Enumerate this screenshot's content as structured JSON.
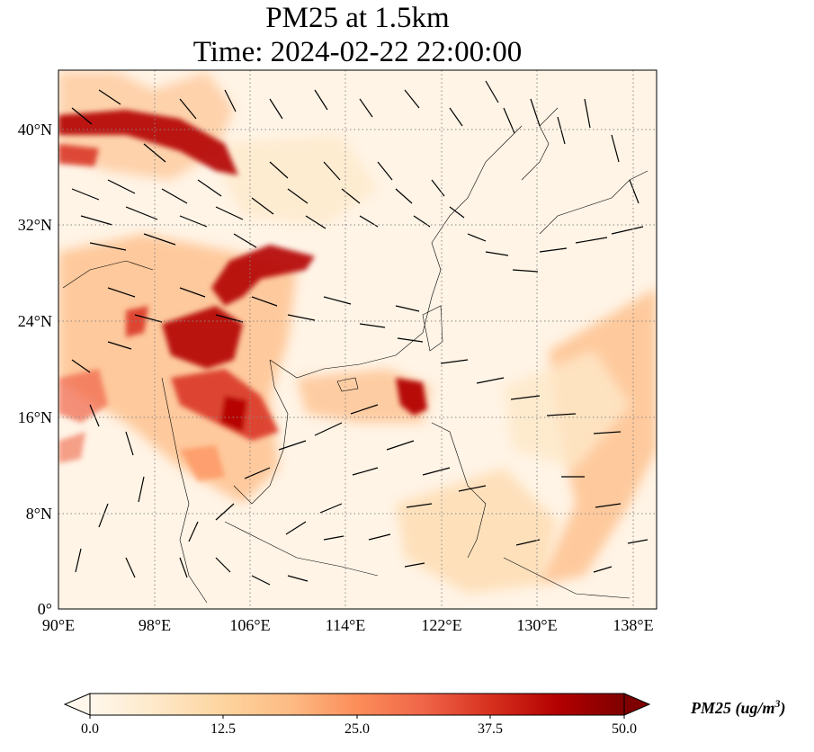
{
  "title": {
    "line1": "PM25 at 1.5km",
    "line2": "Time: 2024-02-22 22:00:00"
  },
  "map": {
    "lon_range": [
      90,
      140
    ],
    "lat_range": [
      0,
      45
    ],
    "lon_ticks": [
      "90°E",
      "98°E",
      "106°E",
      "114°E",
      "122°E",
      "130°E",
      "138°E"
    ],
    "lat_ticks": [
      "0°",
      "8°N",
      "16°N",
      "24°N",
      "32°N",
      "40°N"
    ],
    "gridlines": true,
    "overlay": "wind vectors (arrows)"
  },
  "colorbar": {
    "label": "PM25 (ug/m",
    "label_sup": "3",
    "label_close": ")",
    "ticks": [
      "0.0",
      "12.5",
      "25.0",
      "37.5",
      "50.0"
    ],
    "range": [
      0,
      50
    ],
    "colormap": "OrRd",
    "colors": [
      "#fff7ec",
      "#fee8c8",
      "#fdd49e",
      "#fdbb84",
      "#fc8d59",
      "#ef6548",
      "#d7301f",
      "#b30000",
      "#7f0000"
    ],
    "extend": "both"
  }
}
